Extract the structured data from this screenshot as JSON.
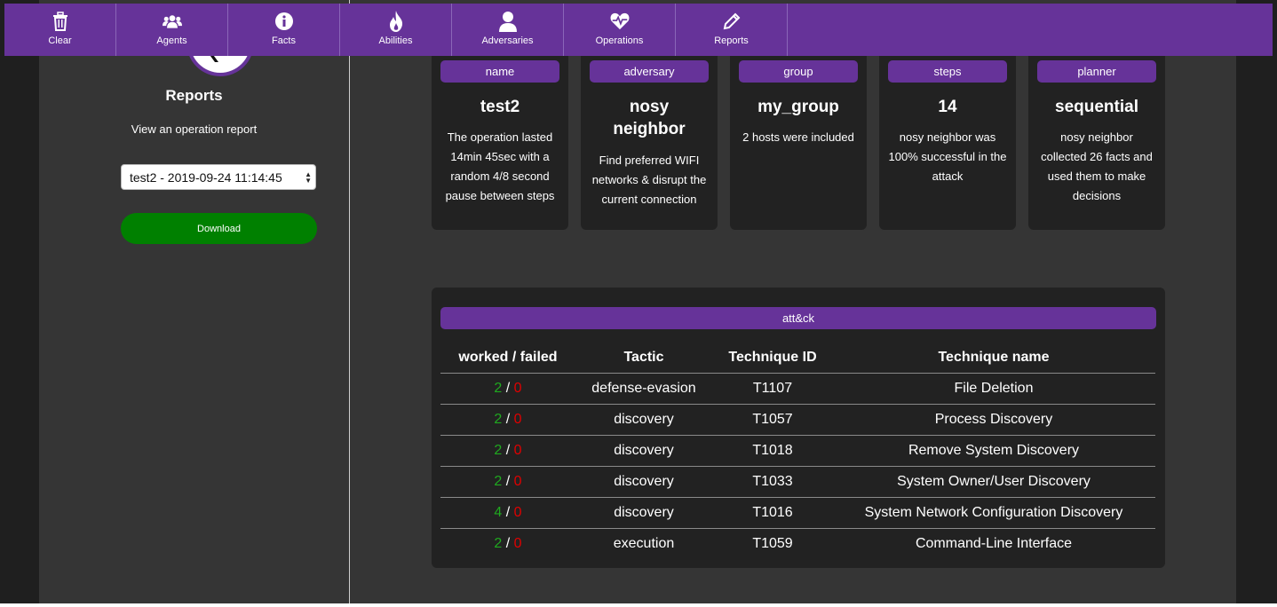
{
  "nav": {
    "items": [
      {
        "label": "Clear",
        "icon": "trash-icon"
      },
      {
        "label": "Agents",
        "icon": "users-icon"
      },
      {
        "label": "Facts",
        "icon": "info-icon"
      },
      {
        "label": "Abilities",
        "icon": "fire-icon"
      },
      {
        "label": "Adversaries",
        "icon": "user-icon"
      },
      {
        "label": "Operations",
        "icon": "heartbeat-icon"
      },
      {
        "label": "Reports",
        "icon": "pencil-icon"
      }
    ]
  },
  "sidebar": {
    "title": "Reports",
    "subtitle": "View an operation report",
    "selected_report": "test2 - 2019-09-24 11:14:45",
    "download_label": "Download"
  },
  "cards": [
    {
      "tag": "name",
      "value": "test2",
      "desc": "The operation lasted 14min 45sec with a random 4/8 second pause between steps"
    },
    {
      "tag": "adversary",
      "value": "nosy neighbor",
      "desc": "Find preferred WIFI networks & disrupt the current connection"
    },
    {
      "tag": "group",
      "value": "my_group",
      "desc": "2 hosts were included"
    },
    {
      "tag": "steps",
      "value": "14",
      "desc": "nosy neighbor was 100% successful in the attack"
    },
    {
      "tag": "planner",
      "value": "sequential",
      "desc": "nosy neighbor collected 26 facts and used them to make decisions"
    }
  ],
  "attack": {
    "tag": "att&ck",
    "headers": [
      "worked / failed",
      "Tactic",
      "Technique ID",
      "Technique name"
    ],
    "separator": "/",
    "rows": [
      {
        "worked": "2",
        "failed": "0",
        "tactic": "defense-evasion",
        "id": "T1107",
        "name": "File Deletion"
      },
      {
        "worked": "2",
        "failed": "0",
        "tactic": "discovery",
        "id": "T1057",
        "name": "Process Discovery"
      },
      {
        "worked": "2",
        "failed": "0",
        "tactic": "discovery",
        "id": "T1018",
        "name": "Remove System Discovery"
      },
      {
        "worked": "2",
        "failed": "0",
        "tactic": "discovery",
        "id": "T1033",
        "name": "System Owner/User Discovery"
      },
      {
        "worked": "4",
        "failed": "0",
        "tactic": "discovery",
        "id": "T1016",
        "name": "System Network Configuration Discovery"
      },
      {
        "worked": "2",
        "failed": "0",
        "tactic": "execution",
        "id": "T1059",
        "name": "Command-Line Interface"
      }
    ]
  },
  "colors": {
    "accent": "#663399",
    "success": "#1faa1f",
    "fail": "#e00000",
    "download": "#008000"
  }
}
